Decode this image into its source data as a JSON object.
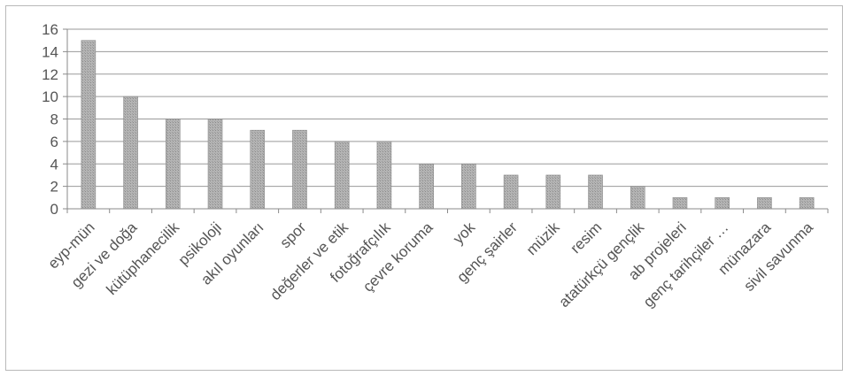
{
  "chart_data": {
    "type": "bar",
    "title": "",
    "xlabel": "",
    "ylabel": "",
    "ylim": [
      0,
      16
    ],
    "yticks": [
      0,
      2,
      4,
      6,
      8,
      10,
      12,
      14,
      16
    ],
    "grid": true,
    "legend": "none",
    "categories": [
      "eyp-mün",
      "gezi ve doğa",
      "kütüphanecilik",
      "psikoloji",
      "akıl oyunları",
      "spor",
      "değerler ve etik",
      "fotoğrafçılık",
      "çevre koruma",
      "yok",
      "genç şairler",
      "müzik",
      "resim",
      "atatürkçü gençlik",
      "ab projeleri",
      "genç tarihçiler …",
      "münazara",
      "sivil savunma"
    ],
    "values": [
      15,
      10,
      8,
      8,
      7,
      7,
      6,
      6,
      4,
      4,
      3,
      3,
      3,
      2,
      1,
      1,
      1,
      1
    ],
    "colors": {
      "bar_fill": "#a9a9a9",
      "bar_stroke": "#8a8a8a",
      "grid": "#9a9a9a",
      "text": "#555555"
    }
  }
}
